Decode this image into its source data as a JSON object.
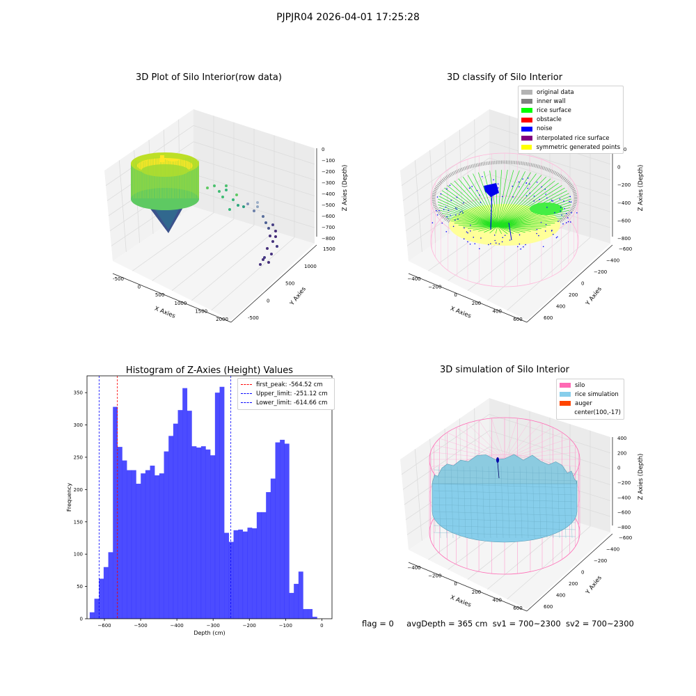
{
  "suptitle": "PJPJR04 2026-04-01 17:25:28",
  "panels": {
    "raw": {
      "title": "3D Plot of Silo Interior(row data)",
      "xlabel": "X Axies",
      "ylabel": "Y Axies",
      "zlabel": "Z Axies (Depth)",
      "xticks": [
        "-500",
        "0",
        "500",
        "1000",
        "1500",
        "2000"
      ],
      "yticks": [
        "-500",
        "0",
        "500",
        "1000",
        "1500"
      ],
      "zticks": [
        "0",
        "−100",
        "−200",
        "−300",
        "−400",
        "−500",
        "−600",
        "−700",
        "−800"
      ]
    },
    "classify": {
      "title": "3D classify of Silo Interior",
      "xlabel": "X Axies",
      "ylabel": "Y Axies",
      "zlabel": "Z Axies (Depth)",
      "xticks": [
        "−400",
        "−200",
        "0",
        "200",
        "400",
        "600"
      ],
      "yticks": [
        "600",
        "400",
        "200",
        "0",
        "−200",
        "−400",
        "−600"
      ],
      "zticks": [
        "200",
        "0",
        "−200",
        "−400",
        "−600",
        "−800"
      ],
      "zticks_partial": "00",
      "legend": [
        {
          "label": "original data",
          "color": "#b3b3b3"
        },
        {
          "label": "inner wall",
          "color": "#808080"
        },
        {
          "label": "rice surface",
          "color": "#00ff00"
        },
        {
          "label": "obstacle",
          "color": "#ff0000"
        },
        {
          "label": "noise",
          "color": "#0000ff"
        },
        {
          "label": "interpolated rice surface",
          "color": "#800080"
        },
        {
          "label": "symmetric generated points",
          "color": "#ffff00"
        }
      ]
    },
    "simulation": {
      "title": "3D simulation of Silo Interior",
      "xlabel": "X Axies",
      "ylabel": "Y Axies",
      "zlabel": "Z Axies (Depth)",
      "xticks": [
        "−400",
        "−200",
        "0",
        "200",
        "400",
        "600"
      ],
      "yticks": [
        "600",
        "400",
        "200",
        "0",
        "−200",
        "−400",
        "−600"
      ],
      "zticks": [
        "400",
        "200",
        "0",
        "−200",
        "−400",
        "−600",
        "−800"
      ],
      "legend": [
        {
          "label": "silo",
          "color": "#ff69b4"
        },
        {
          "label": "rice simulation",
          "color": "#87ceeb"
        },
        {
          "label": "auger",
          "color": "#ff4500"
        },
        {
          "label": "center(100,-17)",
          "color": "none"
        }
      ]
    }
  },
  "chart_data": {
    "type": "bar",
    "title": "Histogram of Z-Axies (Height) Values",
    "xlabel": "Depth (cm)",
    "ylabel": "Frequency",
    "xlim": [
      -648,
      28
    ],
    "ylim": [
      0,
      376
    ],
    "xticks": [
      "−600",
      "−500",
      "−400",
      "−300",
      "−200",
      "−100",
      "0"
    ],
    "yticks": [
      "0",
      "50",
      "100",
      "150",
      "200",
      "250",
      "300",
      "350"
    ],
    "bin_start": -640.5,
    "bin_width": 12.8,
    "values": [
      10,
      31,
      62,
      80,
      103,
      328,
      266,
      245,
      230,
      230,
      209,
      225,
      230,
      237,
      222,
      225,
      259,
      283,
      302,
      323,
      357,
      322,
      267,
      265,
      267,
      262,
      253,
      350,
      359,
      133,
      119,
      137,
      138,
      135,
      141,
      140,
      165,
      165,
      196,
      217,
      273,
      277,
      271,
      40,
      54,
      73,
      15,
      15,
      3
    ],
    "bar_color": "#0000ff",
    "vlines": [
      {
        "x": -564.52,
        "label": "first_peak: -564.52 cm",
        "color": "#ff0000"
      },
      {
        "x": -251.12,
        "label": "Upper_limit: -251.12 cm",
        "color": "#0000ff"
      },
      {
        "x": -614.66,
        "label": "Lower_limit: -614.66 cm",
        "color": "#0000ff"
      }
    ],
    "legend_position": "upper-right"
  },
  "status": {
    "flag": "flag = 0",
    "avg": "avgDepth = 365 cm",
    "sv1": "sv1 = 700~2300",
    "sv2": "sv2 = 700~2300"
  }
}
